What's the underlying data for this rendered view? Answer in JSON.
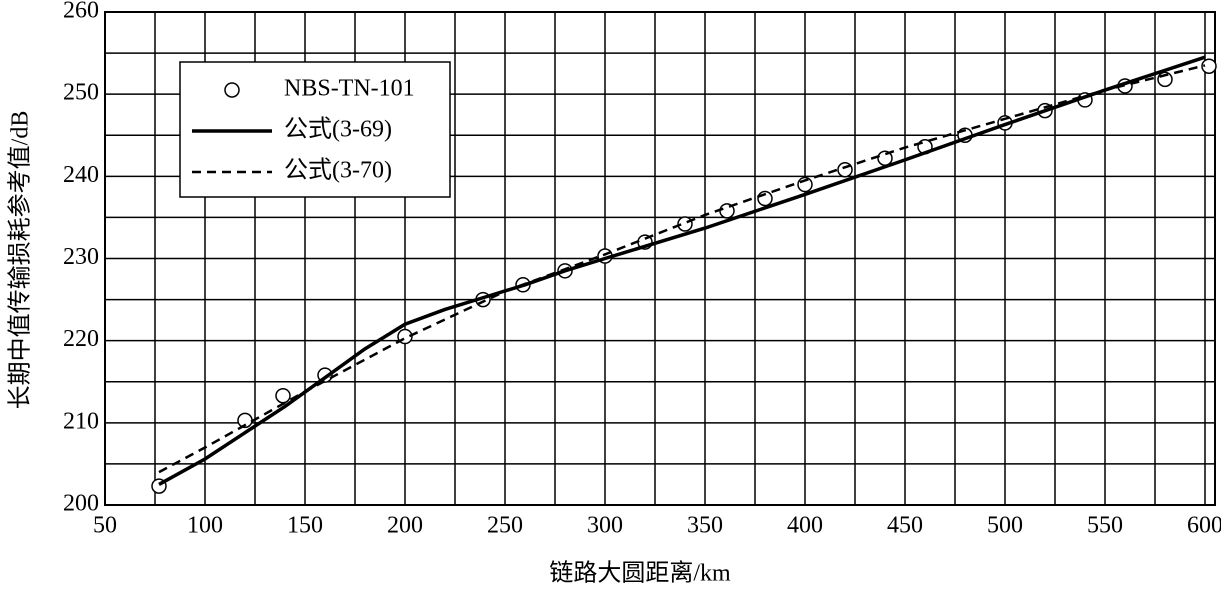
{
  "chart_data": {
    "type": "line",
    "x_label": "链路大圆距离/km",
    "y_label": "长期中值传输损耗参考值/dB",
    "xlim": [
      50,
      605
    ],
    "ylim": [
      200,
      260
    ],
    "xticks": [
      50,
      100,
      150,
      200,
      250,
      300,
      350,
      400,
      450,
      500,
      550,
      600
    ],
    "yticks": [
      200,
      210,
      220,
      230,
      240,
      250,
      260
    ],
    "x_minor_grid": [
      75,
      125,
      175,
      225,
      275,
      325,
      375,
      425,
      475,
      525,
      575
    ],
    "y_minor_grid": [
      205,
      215,
      225,
      235,
      245,
      255
    ],
    "grid": true,
    "legend": "upper left",
    "series": [
      {
        "name": "NBS-TN-101",
        "style": "markers",
        "color": "#000000",
        "x": [
          77,
          120,
          139,
          160,
          200,
          239,
          259,
          280,
          300,
          320,
          340,
          361,
          380,
          400,
          420,
          440,
          460,
          480,
          500,
          520,
          540,
          560,
          580,
          602
        ],
        "values": [
          202.3,
          210.3,
          213.3,
          215.8,
          220.5,
          225,
          226.8,
          228.5,
          230.3,
          232,
          234.2,
          235.8,
          237.3,
          239,
          240.8,
          242.2,
          243.6,
          245,
          246.5,
          248,
          249.3,
          251,
          251.8,
          253.4
        ]
      },
      {
        "name": "公式(3-69)",
        "style": "solid",
        "color": "#000000",
        "x": [
          77,
          100,
          120,
          140,
          160,
          180,
          200,
          220,
          240,
          260,
          280,
          300,
          350,
          400,
          450,
          500,
          550,
          600
        ],
        "values": [
          202.5,
          205.6,
          208.8,
          212,
          215.5,
          219,
          222,
          223.8,
          225.3,
          226.8,
          228.5,
          230,
          233.7,
          237.8,
          242,
          246.3,
          250.5,
          254.5
        ]
      },
      {
        "name": "公式(3-70)",
        "style": "dashed",
        "color": "#000000",
        "x": [
          77,
          100,
          150,
          200,
          250,
          300,
          350,
          400,
          450,
          500,
          550,
          600
        ],
        "values": [
          204,
          207,
          213.8,
          220.3,
          226,
          230.5,
          235.3,
          239.5,
          243.5,
          247,
          250.5,
          253.5
        ]
      }
    ]
  }
}
